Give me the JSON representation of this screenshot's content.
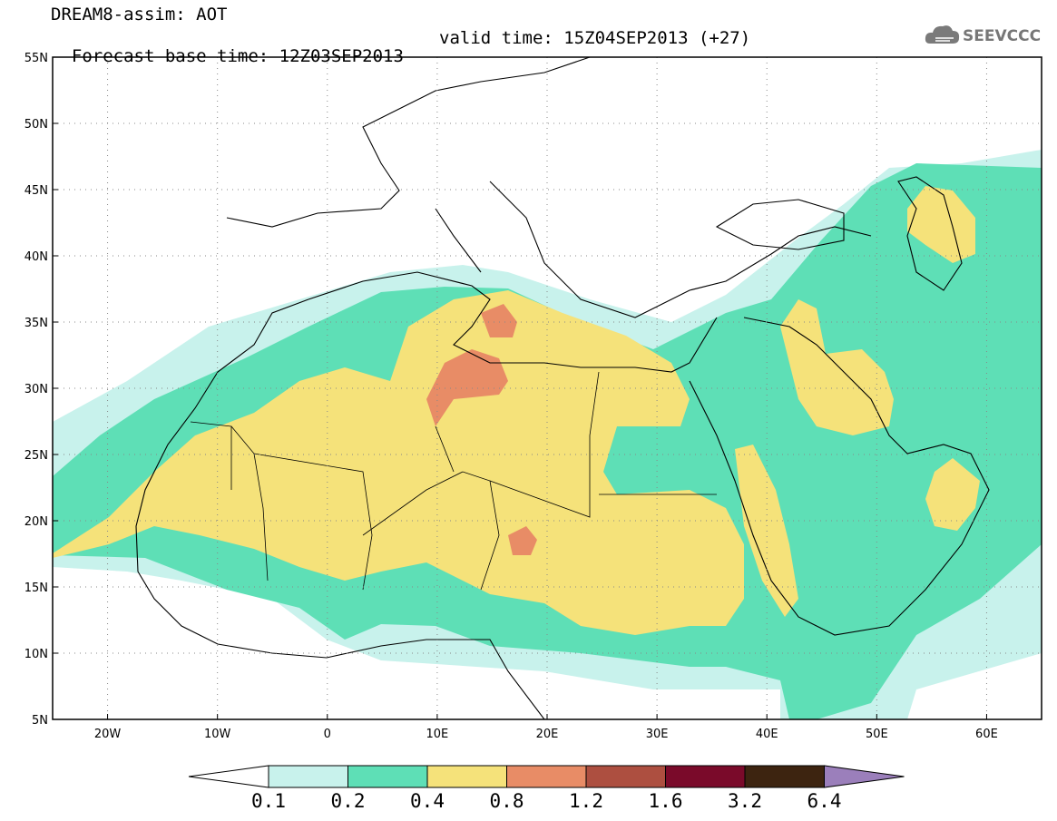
{
  "title": {
    "line1": "DREAM8-assim: AOT",
    "line2_left": "Forecast base time: 12Z03SEP2013",
    "line2_right": "valid time: 15Z04SEP2013 (+27)"
  },
  "logo": {
    "text": "SEEVCCC",
    "icon": "cloud-icon"
  },
  "map": {
    "lon_range": [
      -25,
      65
    ],
    "lat_range": [
      5,
      55
    ],
    "lat_ticks": [
      "5N",
      "10N",
      "15N",
      "20N",
      "25N",
      "30N",
      "35N",
      "40N",
      "45N",
      "50N",
      "55N"
    ],
    "lon_ticks": [
      "20W",
      "10W",
      "0",
      "10E",
      "20E",
      "30E",
      "40E",
      "50E",
      "60E"
    ],
    "gridlines": "dotted"
  },
  "colorbar": {
    "labels": [
      "0.1",
      "0.2",
      "0.4",
      "0.8",
      "1.2",
      "1.6",
      "3.2",
      "6.4"
    ],
    "colors": [
      "#ffffff",
      "#c8f2ec",
      "#5edfb6",
      "#f5e27a",
      "#e88c66",
      "#ad4f40",
      "#7a0a2a",
      "#3d2410",
      "#9b7fbb"
    ]
  }
}
